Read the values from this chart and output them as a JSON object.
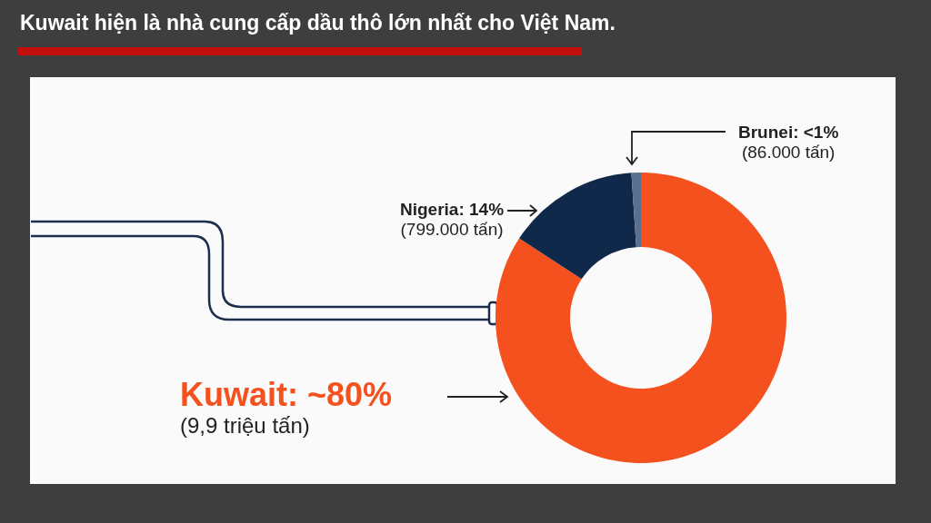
{
  "chart_data": {
    "type": "donut",
    "title": "Kuwait hiện là nhà cung cấp dầu thô lớn nhất cho Việt Nam.",
    "categories": [
      "Kuwait",
      "Nigeria",
      "Brunei"
    ],
    "values": [
      80,
      14,
      1
    ],
    "colors": [
      "#f4511e",
      "#10294a",
      "#5b6f8e"
    ],
    "value_labels": [
      "~80%",
      "14%",
      "<1%"
    ],
    "annotations": [
      "(9,9 triệu tấn)",
      "(799.000 tấn)",
      "(86.000 tấn)"
    ]
  }
}
